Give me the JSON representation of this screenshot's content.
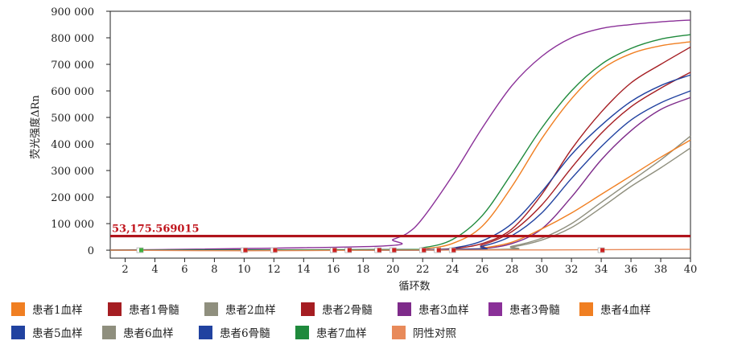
{
  "chart_data": {
    "type": "line",
    "xlabel": "循环数",
    "ylabel": "荧光强度ΔRn",
    "xlim": [
      1,
      40
    ],
    "ylim": [
      -30000,
      900000
    ],
    "xticks": [
      "2",
      "4",
      "6",
      "8",
      "10",
      "12",
      "14",
      "16",
      "18",
      "20",
      "22",
      "24",
      "26",
      "28",
      "30",
      "32",
      "34",
      "36",
      "38",
      "40"
    ],
    "yticks": [
      {
        "value": 0,
        "label": "0"
      },
      {
        "value": 100000,
        "label": "100 000"
      },
      {
        "value": 200000,
        "label": "200 000"
      },
      {
        "value": 300000,
        "label": "300 000"
      },
      {
        "value": 400000,
        "label": "400 000"
      },
      {
        "value": 500000,
        "label": "500 000"
      },
      {
        "value": 600000,
        "label": "600 000"
      },
      {
        "value": 700000,
        "label": "700 000"
      },
      {
        "value": 800000,
        "label": "800 000"
      },
      {
        "value": 900000,
        "label": "900 000"
      }
    ],
    "threshold": {
      "value": 53175.569015,
      "label": "53,175.569015",
      "color": "#b0141c"
    },
    "grid": false,
    "legend_position": "bottom",
    "series": [
      {
        "name": "患者1血样",
        "color": "#f07f22",
        "x": [
          1,
          20,
          22,
          24,
          26,
          28,
          30,
          32,
          34,
          36,
          38,
          40
        ],
        "values": [
          0,
          1000,
          5000,
          25000,
          90000,
          240000,
          420000,
          570000,
          680000,
          740000,
          770000,
          785000
        ]
      },
      {
        "name": "患者1骨髓",
        "color": "#a51d22",
        "x": [
          1,
          20,
          22,
          24,
          26,
          28,
          30,
          32,
          34,
          36,
          38,
          40
        ],
        "values": [
          0,
          0,
          1000,
          6000,
          25000,
          80000,
          210000,
          380000,
          520000,
          630000,
          700000,
          765000
        ]
      },
      {
        "name": "患者2血样",
        "color": "#8f8f7e",
        "x": [
          1,
          26,
          28,
          30,
          32,
          34,
          36,
          38,
          40
        ],
        "values": [
          0,
          2000,
          15000,
          45000,
          100000,
          180000,
          260000,
          340000,
          430000
        ]
      },
      {
        "name": "患者2骨髓",
        "color": "#a51d22",
        "x": [
          1,
          24,
          26,
          28,
          30,
          32,
          34,
          36,
          38,
          40
        ],
        "values": [
          0,
          3000,
          20000,
          70000,
          170000,
          310000,
          440000,
          540000,
          610000,
          670000
        ]
      },
      {
        "name": "患者3血样",
        "color": "#7e2b8a",
        "x": [
          1,
          24,
          26,
          28,
          30,
          32,
          34,
          36,
          38,
          40
        ],
        "values": [
          0,
          1000,
          6000,
          25000,
          80000,
          200000,
          340000,
          450000,
          530000,
          575000
        ]
      },
      {
        "name": "患者3骨髓",
        "color": "#8a3098",
        "x": [
          1,
          19,
          20,
          21,
          22,
          24,
          26,
          28,
          30,
          32,
          34,
          36,
          38,
          40
        ],
        "values": [
          0,
          15000,
          40000,
          65000,
          120000,
          280000,
          460000,
          620000,
          730000,
          800000,
          835000,
          850000,
          860000,
          867000
        ]
      },
      {
        "name": "患者4血样",
        "color": "#f07f22",
        "x": [
          1,
          24,
          26,
          28,
          30,
          32,
          34,
          36,
          38,
          40
        ],
        "values": [
          0,
          1000,
          8000,
          30000,
          80000,
          140000,
          210000,
          280000,
          350000,
          415000
        ]
      },
      {
        "name": "患者5血样",
        "color": "#2142a0",
        "x": [
          1,
          22,
          24,
          26,
          28,
          30,
          32,
          34,
          36,
          38,
          40
        ],
        "values": [
          0,
          0,
          8000,
          35000,
          100000,
          220000,
          360000,
          470000,
          560000,
          620000,
          660000
        ]
      },
      {
        "name": "患者6血样",
        "color": "#8f8f7e",
        "x": [
          1,
          26,
          28,
          30,
          32,
          34,
          36,
          38,
          40
        ],
        "values": [
          0,
          2000,
          12000,
          38000,
          85000,
          160000,
          240000,
          310000,
          385000
        ]
      },
      {
        "name": "患者6骨髓",
        "color": "#2142a0",
        "x": [
          1,
          24,
          26,
          28,
          30,
          32,
          34,
          36,
          38,
          40
        ],
        "values": [
          0,
          3000,
          15000,
          55000,
          140000,
          270000,
          390000,
          490000,
          555000,
          600000
        ]
      },
      {
        "name": "患者7血样",
        "color": "#1f8a3c",
        "x": [
          1,
          20,
          22,
          24,
          26,
          28,
          30,
          32,
          34,
          36,
          38,
          40
        ],
        "values": [
          0,
          2000,
          9000,
          40000,
          130000,
          290000,
          460000,
          600000,
          700000,
          760000,
          795000,
          812000
        ]
      },
      {
        "name": "阴性对照",
        "color": "#e88a5a",
        "x": [
          1,
          10,
          20,
          30,
          40
        ],
        "values": [
          0,
          -2000,
          0,
          1000,
          3000
        ]
      }
    ]
  }
}
